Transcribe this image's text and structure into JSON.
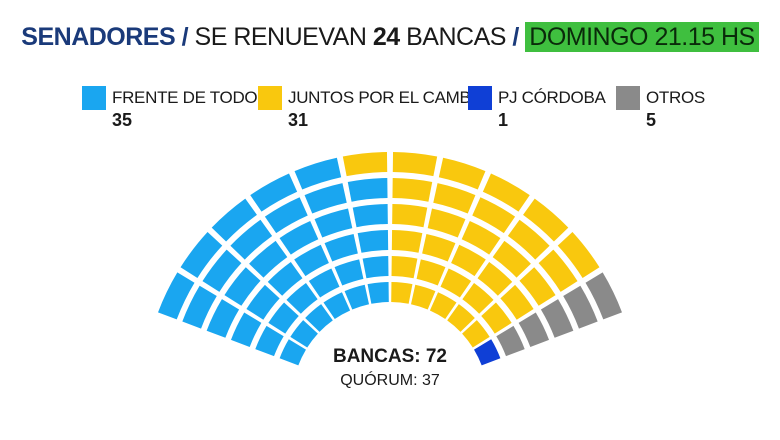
{
  "header": {
    "title": "SENADORES",
    "sep1": "/",
    "renew_prefix": "SE RENUEVAN",
    "renew_number": "24",
    "renew_suffix": "BANCAS",
    "sep2": "/",
    "time": "DOMINGO 21.15 HS"
  },
  "chart_data": {
    "type": "parliament",
    "total_label": "BANCAS: 72",
    "quorum_label": "QUÓRUM: 37",
    "total_seats": 72,
    "quorum": 37,
    "series": [
      {
        "name": "FRENTE DE TODOS",
        "seats": 35,
        "color": "#1aa6f0"
      },
      {
        "name": "JUNTOS POR EL CAMBIO",
        "seats": 31,
        "color": "#f9c80e"
      },
      {
        "name": "PJ CÓRDOBA",
        "seats": 1,
        "color": "#0f3fd6"
      },
      {
        "name": "OTROS",
        "seats": 5,
        "color": "#8a8a8a"
      }
    ]
  }
}
